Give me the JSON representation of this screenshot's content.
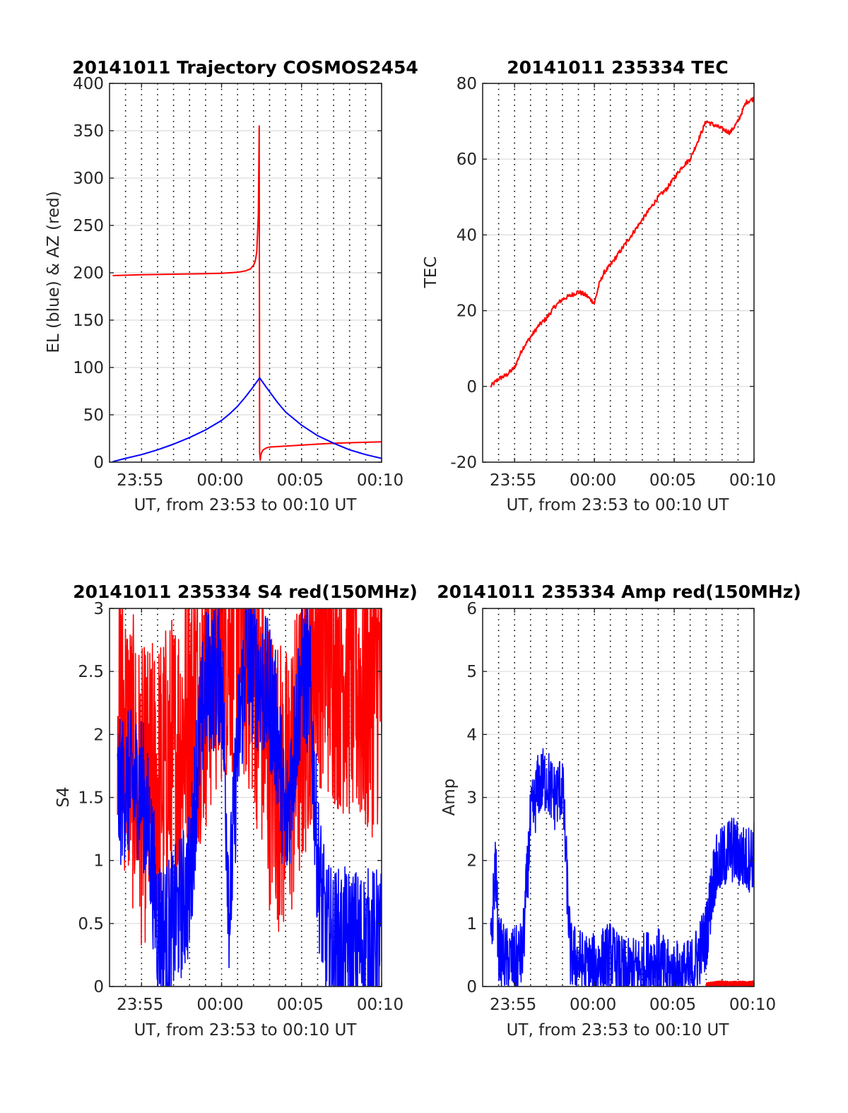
{
  "figure": {
    "background": "#ffffff",
    "red": "#ff0000",
    "blue": "#0000ff"
  },
  "chart_data": [
    {
      "id": "trajectory",
      "type": "line",
      "title": "20141011 Trajectory COSMOS2454",
      "xlabel": "UT, from 23:53 to 00:10 UT",
      "ylabel": "EL (blue) & AZ (red)",
      "x_unit": "minutes since 23:53 UT",
      "xlim": [
        0,
        17
      ],
      "ylim": [
        0,
        400
      ],
      "yticks": [
        0,
        50,
        100,
        150,
        200,
        250,
        300,
        350,
        400
      ],
      "xticks": [
        {
          "x": 2,
          "label": "23:55"
        },
        {
          "x": 7,
          "label": "00:00"
        },
        {
          "x": 12,
          "label": "00:05"
        },
        {
          "x": 17,
          "label": "00:10"
        }
      ],
      "minor_grid_step": 1,
      "grid": true,
      "series": [
        {
          "name": "AZ",
          "color": "#ff0000",
          "x": [
            0.2,
            2,
            4,
            6,
            7,
            8,
            8.5,
            8.8,
            9,
            9.1,
            9.2,
            9.3,
            9.35,
            9.38,
            9.42,
            9.45,
            9.5,
            9.6,
            9.8,
            10,
            11,
            12,
            13,
            14,
            15,
            16,
            17
          ],
          "y": [
            197,
            198,
            198.5,
            199,
            199.5,
            200.5,
            202,
            204,
            208,
            212,
            222,
            262,
            355,
            10,
            2,
            7,
            10,
            13,
            15,
            16,
            17,
            18,
            19,
            20,
            20.5,
            21,
            21.5
          ]
        },
        {
          "name": "EL",
          "color": "#0000ff",
          "x": [
            0.2,
            1,
            2,
            3,
            4,
            5,
            6,
            7,
            7.5,
            8,
            8.5,
            9,
            9.38,
            9.8,
            10.5,
            11,
            12,
            13,
            14,
            15,
            16,
            17
          ],
          "y": [
            0.5,
            4,
            8,
            13,
            19,
            26,
            34,
            44,
            51,
            59,
            69,
            80,
            89,
            79,
            63,
            53,
            39,
            28,
            20,
            13,
            8,
            4
          ]
        }
      ]
    },
    {
      "id": "tec",
      "type": "line",
      "title": "20141011 235334 TEC",
      "xlabel": "UT, from 23:53 to 00:10 UT",
      "ylabel": "TEC",
      "x_unit": "minutes since 23:53 UT",
      "xlim": [
        0,
        17
      ],
      "ylim": [
        -20,
        80
      ],
      "yticks": [
        -20,
        0,
        20,
        40,
        60,
        80
      ],
      "xticks": [
        {
          "x": 2,
          "label": "23:55"
        },
        {
          "x": 7,
          "label": "00:00"
        },
        {
          "x": 12,
          "label": "00:05"
        },
        {
          "x": 17,
          "label": "00:10"
        }
      ],
      "minor_grid_step": 1,
      "grid": true,
      "series": [
        {
          "name": "TEC",
          "color": "#ff0000",
          "x": [
            0.5,
            1,
            1.5,
            2,
            2.5,
            3,
            3.5,
            4,
            4.5,
            5,
            5.5,
            6,
            6.5,
            7,
            7.3,
            7.6,
            8,
            8.5,
            9,
            9.5,
            10,
            10.5,
            11,
            11.5,
            12,
            12.5,
            13,
            13.3,
            13.7,
            14,
            14.5,
            15,
            15.5,
            16,
            16.5,
            17
          ],
          "y": [
            0,
            2,
            3,
            5,
            10,
            13,
            16,
            18,
            21,
            23,
            24,
            25,
            24,
            22,
            27,
            30,
            32,
            35,
            38,
            41,
            44,
            47,
            50,
            52,
            55,
            58,
            60,
            63,
            67,
            70,
            69,
            68,
            67,
            70,
            75,
            76
          ]
        }
      ]
    },
    {
      "id": "s4",
      "type": "line",
      "title": "20141011 235334 S4 red(150MHz)",
      "xlabel": "UT, from 23:53 to 00:10 UT",
      "ylabel": "S4",
      "x_unit": "minutes since 23:53 UT",
      "xlim": [
        0,
        17
      ],
      "ylim": [
        0,
        3
      ],
      "yticks": [
        0,
        0.5,
        1,
        1.5,
        2,
        2.5,
        3
      ],
      "ytick_labels": [
        "0",
        "0.5",
        "1",
        "1.5",
        "2",
        "2.5",
        "3"
      ],
      "xticks": [
        {
          "x": 2,
          "label": "23:55"
        },
        {
          "x": 7,
          "label": "00:00"
        },
        {
          "x": 12,
          "label": "00:05"
        },
        {
          "x": 17,
          "label": "00:10"
        }
      ],
      "minor_grid_step": 1,
      "grid": true,
      "series": [
        {
          "name": "red",
          "color": "#ff0000",
          "noisy": true,
          "noise": 1.2,
          "x": [
            0.5,
            1,
            2,
            3,
            4,
            5,
            6,
            7,
            8,
            9,
            10,
            11,
            12,
            13,
            14,
            15,
            16,
            17
          ],
          "y": [
            2.5,
            2.0,
            1.5,
            1.6,
            1.8,
            2.2,
            2.4,
            2.8,
            2.9,
            2.6,
            1.8,
            1.5,
            2.0,
            2.8,
            2.6,
            2.5,
            2.3,
            2.5
          ]
        },
        {
          "name": "blue",
          "color": "#0000ff",
          "noisy": true,
          "noise": 0.6,
          "x": [
            0.5,
            1,
            2,
            2.5,
            3,
            3.5,
            4,
            5,
            5.5,
            6,
            7,
            7.5,
            8,
            8.5,
            9,
            10,
            10.5,
            11,
            12,
            12.5,
            13,
            13.5,
            14,
            15,
            16,
            17
          ],
          "y": [
            1.5,
            1.6,
            1.6,
            1.2,
            0.5,
            0.4,
            0.5,
            0.8,
            1.8,
            2.4,
            2.5,
            0.6,
            1.9,
            2.6,
            2.5,
            2.3,
            2.0,
            1.2,
            2.5,
            2.4,
            1.0,
            0.4,
            0.35,
            0.35,
            0.35,
            0.35
          ]
        }
      ]
    },
    {
      "id": "amp",
      "type": "line",
      "title": "20141011 235334 Amp red(150MHz)",
      "xlabel": "UT, from 23:53 to 00:10 UT",
      "ylabel": "Amp",
      "x_unit": "minutes since 23:53 UT",
      "xlim": [
        0,
        17
      ],
      "ylim": [
        0,
        6
      ],
      "yticks": [
        0,
        1,
        2,
        3,
        4,
        5,
        6
      ],
      "xticks": [
        {
          "x": 2,
          "label": "23:55"
        },
        {
          "x": 7,
          "label": "00:00"
        },
        {
          "x": 12,
          "label": "00:05"
        },
        {
          "x": 17,
          "label": "00:10"
        }
      ],
      "minor_grid_step": 1,
      "grid": true,
      "series": [
        {
          "name": "blue",
          "color": "#0000ff",
          "noisy": true,
          "noise": 0.55,
          "floor": 0,
          "x": [
            0.5,
            0.8,
            1,
            1.5,
            2,
            2.5,
            3,
            3.5,
            4,
            4.5,
            5,
            5.5,
            6,
            6.5,
            7,
            7.5,
            8,
            8.5,
            9,
            10,
            10.5,
            11,
            11.5,
            12,
            13,
            14,
            14.5,
            15,
            15.5,
            16,
            16.5,
            17
          ],
          "y": [
            0.5,
            2.0,
            0.6,
            0.4,
            0.4,
            0.5,
            2.6,
            3.2,
            3.3,
            3.0,
            3.2,
            0.5,
            0.4,
            0.3,
            0.3,
            0.4,
            0.5,
            0.3,
            0.2,
            0.3,
            0.4,
            0.4,
            0.2,
            0.2,
            0.2,
            0.8,
            1.8,
            2.0,
            2.2,
            2.1,
            2.0,
            2.1
          ]
        },
        {
          "name": "red",
          "color": "#ff0000",
          "noisy": true,
          "noise": 0.04,
          "floor": 0,
          "x": [
            14,
            14.5,
            15,
            15.5,
            16,
            16.5,
            17
          ],
          "y": [
            0.02,
            0.04,
            0.05,
            0.04,
            0.05,
            0.04,
            0.05
          ]
        }
      ]
    }
  ]
}
